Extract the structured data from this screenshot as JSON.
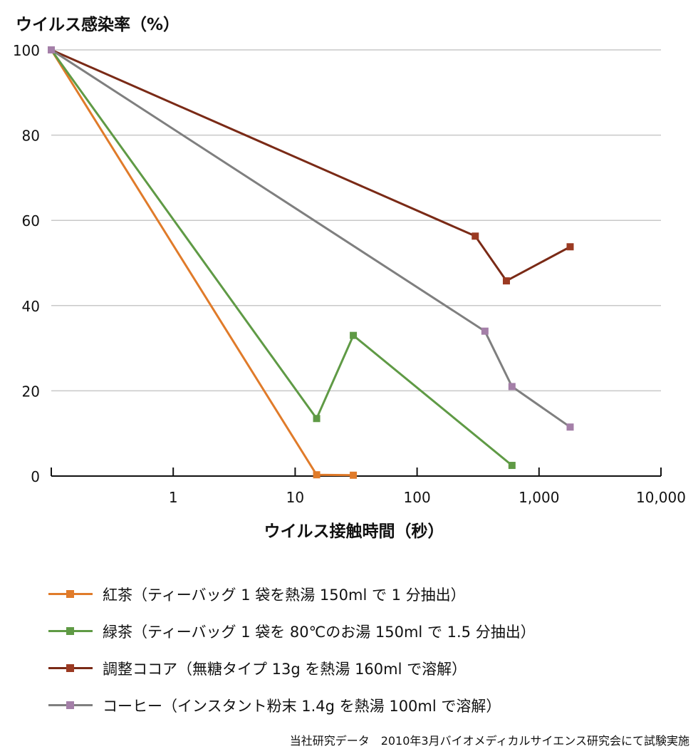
{
  "chart_data": {
    "type": "line",
    "x_scale": "log",
    "title": "",
    "ylabel": "ウイルス感染率（%）",
    "xlabel": "ウイルス接触時間（秒）",
    "ylim": [
      0,
      100
    ],
    "xlim": [
      0.1,
      10000
    ],
    "y_ticks": [
      0,
      20,
      40,
      60,
      80,
      100
    ],
    "y_tick_labels": [
      "0",
      "20",
      "40",
      "60",
      "80",
      "100"
    ],
    "x_ticks": [
      1,
      10,
      100,
      1000,
      10000
    ],
    "x_tick_labels": [
      "1",
      "10",
      "100",
      "1,000",
      "10,000"
    ],
    "grid": true,
    "series": [
      {
        "name": "紅茶（ティーバッグ 1 袋を熱湯 150ml で 1 分抽出）",
        "color": "#e07b2a",
        "marker_color": "#e07b2a",
        "x": [
          0.1,
          15,
          30
        ],
        "y": [
          100,
          0.3,
          0.2
        ]
      },
      {
        "name": "緑茶（ティーバッグ 1 袋を 80℃のお湯 150ml で 1.5 分抽出）",
        "color": "#5f9a45",
        "marker_color": "#5f9a45",
        "x": [
          0.1,
          15,
          30,
          600
        ],
        "y": [
          100,
          13.5,
          33,
          2.5
        ]
      },
      {
        "name": "調整ココア（無糖タイプ 13g を熱湯 160ml で溶解）",
        "color": "#7a2a16",
        "marker_color": "#9b3a22",
        "x": [
          0.1,
          300,
          540,
          1800
        ],
        "y": [
          100,
          56.3,
          45.8,
          53.8
        ]
      },
      {
        "name": "コーヒー（インスタント粉末 1.4g を熱湯 100ml で溶解）",
        "color": "#7f7f7f",
        "marker_color": "#a47fa8",
        "x": [
          0.1,
          360,
          600,
          1800
        ],
        "y": [
          100,
          34,
          21,
          11.5
        ]
      }
    ]
  },
  "footer": {
    "source": "当社研究データ　2010年3月バイオメディカルサイエンス研究会にて試験実施"
  }
}
